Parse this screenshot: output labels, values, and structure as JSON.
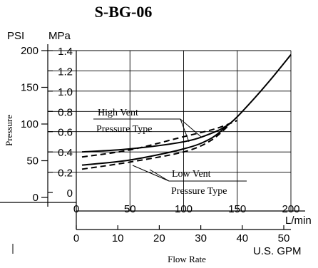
{
  "title": "S-BG-06",
  "y_units": {
    "psi_label": "PSI",
    "mpa_label": "MPa",
    "axis_label": "Pressure"
  },
  "x_units": {
    "lmin_label": "L/min",
    "gpm_label": "U.S. GPM",
    "axis_label": "Flow Rate"
  },
  "annotations": {
    "high_vent_line1": "High Vent",
    "high_vent_line2": "Pressure Type",
    "low_vent_line1": "Low Vent",
    "low_vent_line2": "Pressure Type"
  },
  "chart_data": {
    "type": "line",
    "title": "S-BG-06",
    "xlabel": "Flow Rate",
    "ylabel": "Pressure",
    "x_primary": {
      "unit": "L/min",
      "range": [
        0,
        200
      ],
      "ticks": [
        0,
        50,
        100,
        150,
        200
      ]
    },
    "x_secondary": {
      "unit": "U.S. GPM",
      "ticks": [
        0,
        10,
        20,
        30,
        40,
        50
      ]
    },
    "y_primary": {
      "unit": "MPa",
      "range": [
        0,
        1.4
      ],
      "ticks": [
        0,
        0.2,
        0.4,
        0.6,
        0.8,
        1.0,
        1.2,
        1.4
      ]
    },
    "y_secondary": {
      "unit": "PSI",
      "ticks": [
        0,
        50,
        100,
        150,
        200
      ]
    },
    "grid": true,
    "series": [
      {
        "style": "solid",
        "x": [
          0,
          50,
          100,
          125,
          143,
          160,
          180,
          200
        ],
        "y": [
          0.4,
          0.43,
          0.5,
          0.58,
          0.68,
          0.86,
          1.1,
          1.36
        ]
      },
      {
        "style": "dashed",
        "x": [
          0,
          50,
          100,
          130,
          150
        ],
        "y": [
          0.35,
          0.42,
          0.55,
          0.63,
          0.71
        ]
      },
      {
        "style": "solid",
        "x": [
          0,
          50,
          100,
          125,
          143
        ],
        "y": [
          0.27,
          0.32,
          0.43,
          0.53,
          0.68
        ]
      },
      {
        "style": "dashed",
        "x": [
          0,
          50,
          100,
          125,
          143
        ],
        "y": [
          0.23,
          0.3,
          0.4,
          0.51,
          0.67
        ]
      }
    ]
  }
}
